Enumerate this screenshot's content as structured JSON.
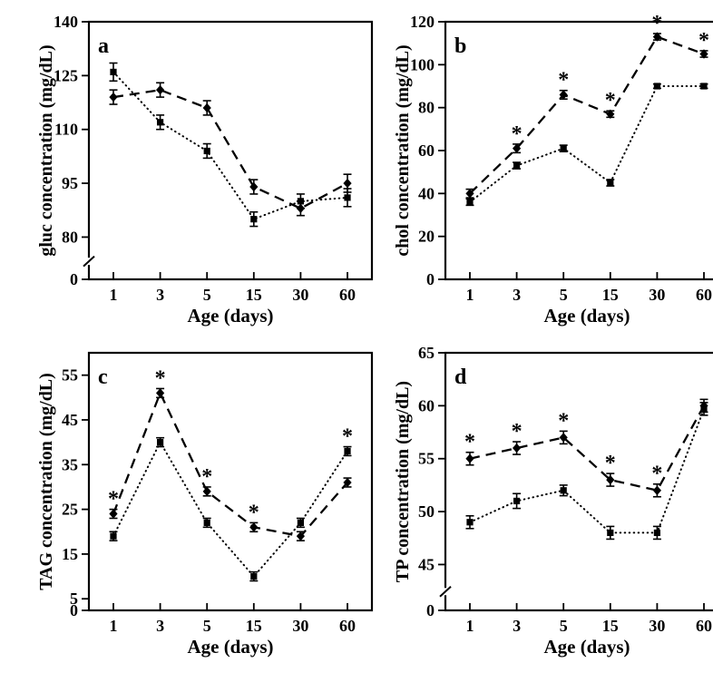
{
  "figure": {
    "background": "#ffffff",
    "ink": "#000000",
    "xlabel": "Age (days)",
    "categories": [
      "1",
      "3",
      "5",
      "15",
      "30",
      "60"
    ],
    "legend": {
      "dashed_series_marker": "filled-diamond",
      "dotted_series_marker": "filled-square",
      "significance_symbol": "*"
    }
  },
  "chart_data": [
    {
      "type": "line",
      "panel_letter": "a",
      "title": "",
      "xlabel": "Age (days)",
      "ylabel": "gluc concentration (mg/dL)",
      "categories": [
        "1",
        "3",
        "5",
        "15",
        "30",
        "60"
      ],
      "yticks": [
        0,
        80,
        95,
        110,
        125,
        140
      ],
      "axis_break": true,
      "scale": {
        "anchors": [
          [
            140,
            0
          ],
          [
            80,
            0.836
          ],
          [
            0,
            1
          ]
        ],
        "break_frac": 0.93
      },
      "series": [
        {
          "name": "dashed-diamond",
          "line": "dashed",
          "marker": "diamond",
          "values": [
            119,
            121,
            116,
            94,
            88,
            95
          ],
          "errors": [
            2,
            2,
            2,
            2,
            2,
            2.5
          ],
          "asterisk_at": []
        },
        {
          "name": "dotted-square",
          "line": "dotted",
          "marker": "square",
          "values": [
            126,
            112,
            104,
            85,
            90,
            91
          ],
          "errors": [
            2.5,
            2,
            2,
            2,
            2,
            2.5
          ],
          "asterisk_at": []
        }
      ]
    },
    {
      "type": "line",
      "panel_letter": "b",
      "title": "",
      "xlabel": "Age (days)",
      "ylabel": "chol concentration (mg/dL)",
      "categories": [
        "1",
        "3",
        "5",
        "15",
        "30",
        "60"
      ],
      "yticks": [
        0,
        20,
        40,
        60,
        80,
        100,
        120
      ],
      "axis_break": false,
      "scale": {
        "anchors": [
          [
            120,
            0
          ],
          [
            0,
            1
          ]
        ]
      },
      "series": [
        {
          "name": "dashed-diamond",
          "line": "dashed",
          "marker": "diamond",
          "values": [
            40,
            61,
            86,
            77,
            113,
            105
          ],
          "errors": [
            2,
            2,
            2,
            1.5,
            1.5,
            1.5
          ],
          "asterisk_at": [
            1,
            2,
            3,
            4,
            5
          ]
        },
        {
          "name": "dotted-square",
          "line": "dotted",
          "marker": "square",
          "values": [
            36,
            53,
            61,
            45,
            90,
            90
          ],
          "errors": [
            1.5,
            1.5,
            1.5,
            1.5,
            1,
            1
          ],
          "asterisk_at": []
        }
      ]
    },
    {
      "type": "line",
      "panel_letter": "c",
      "title": "",
      "xlabel": "Age (days)",
      "ylabel": "TAG concentration (mg/dL)",
      "categories": [
        "1",
        "3",
        "5",
        "15",
        "30",
        "60"
      ],
      "yticks": [
        0,
        5,
        15,
        25,
        35,
        45,
        55
      ],
      "axis_break": false,
      "scale": {
        "anchors": [
          [
            60,
            0
          ],
          [
            5,
            0.955
          ],
          [
            0,
            1
          ]
        ]
      },
      "series": [
        {
          "name": "dashed-diamond",
          "line": "dashed",
          "marker": "diamond",
          "values": [
            24,
            51,
            29,
            21,
            19,
            31
          ],
          "errors": [
            1,
            1,
            1,
            1,
            1,
            1
          ],
          "asterisk_at": [
            0,
            1,
            2,
            3
          ]
        },
        {
          "name": "dotted-square",
          "line": "dotted",
          "marker": "square",
          "values": [
            19,
            40,
            22,
            10,
            22,
            38
          ],
          "errors": [
            1,
            1,
            1,
            1,
            1,
            1
          ],
          "asterisk_at": [
            5
          ]
        }
      ]
    },
    {
      "type": "line",
      "panel_letter": "d",
      "title": "",
      "xlabel": "Age (days)",
      "ylabel": "TP concentration (mg/dL)",
      "categories": [
        "1",
        "3",
        "5",
        "15",
        "30",
        "60"
      ],
      "yticks": [
        0,
        45,
        50,
        55,
        60,
        65
      ],
      "axis_break": true,
      "scale": {
        "anchors": [
          [
            65,
            0
          ],
          [
            45,
            0.822
          ],
          [
            0,
            1
          ]
        ],
        "break_frac": 0.927
      },
      "series": [
        {
          "name": "dashed-diamond",
          "line": "dashed",
          "marker": "diamond",
          "values": [
            55,
            56,
            57,
            53,
            52,
            60
          ],
          "errors": [
            0.6,
            0.6,
            0.6,
            0.6,
            0.6,
            0.6
          ],
          "asterisk_at": [
            0,
            1,
            2,
            3,
            4
          ]
        },
        {
          "name": "dotted-square",
          "line": "dotted",
          "marker": "square",
          "values": [
            49,
            51,
            52,
            48,
            48,
            59.7
          ],
          "errors": [
            0.6,
            0.7,
            0.5,
            0.6,
            0.6,
            0.6
          ],
          "asterisk_at": []
        }
      ]
    }
  ]
}
